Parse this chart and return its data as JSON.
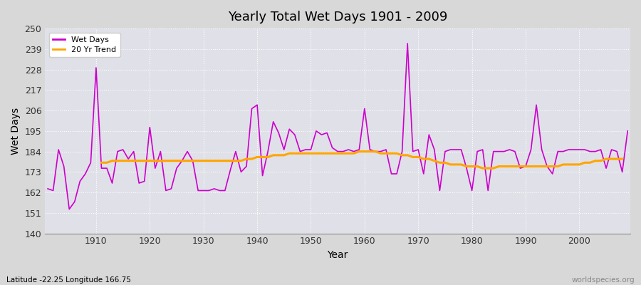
{
  "title": "Yearly Total Wet Days 1901 - 2009",
  "xlabel": "Year",
  "ylabel": "Wet Days",
  "subtitle": "Latitude -22.25 Longitude 166.75",
  "watermark": "worldspecies.org",
  "wet_days_color": "#cc00cc",
  "trend_color": "#ffa500",
  "bg_color": "#d8d8d8",
  "plot_bg_color": "#e0e0e8",
  "ylim": [
    140,
    250
  ],
  "yticks": [
    140,
    151,
    162,
    173,
    184,
    195,
    206,
    217,
    228,
    239,
    250
  ],
  "years": [
    1901,
    1902,
    1903,
    1904,
    1905,
    1906,
    1907,
    1908,
    1909,
    1910,
    1911,
    1912,
    1913,
    1914,
    1915,
    1916,
    1917,
    1918,
    1919,
    1920,
    1921,
    1922,
    1923,
    1924,
    1925,
    1926,
    1927,
    1928,
    1929,
    1930,
    1931,
    1932,
    1933,
    1934,
    1935,
    1936,
    1937,
    1938,
    1939,
    1940,
    1941,
    1942,
    1943,
    1944,
    1945,
    1946,
    1947,
    1948,
    1949,
    1950,
    1951,
    1952,
    1953,
    1954,
    1955,
    1956,
    1957,
    1958,
    1959,
    1960,
    1961,
    1962,
    1963,
    1964,
    1965,
    1966,
    1967,
    1968,
    1969,
    1970,
    1971,
    1972,
    1973,
    1974,
    1975,
    1976,
    1977,
    1978,
    1979,
    1980,
    1981,
    1982,
    1983,
    1984,
    1985,
    1986,
    1987,
    1988,
    1989,
    1990,
    1991,
    1992,
    1993,
    1994,
    1995,
    1996,
    1997,
    1998,
    1999,
    2000,
    2001,
    2002,
    2003,
    2004,
    2005,
    2006,
    2007,
    2008,
    2009
  ],
  "wet_days": [
    164,
    163,
    185,
    176,
    153,
    157,
    168,
    172,
    178,
    229,
    175,
    175,
    167,
    184,
    185,
    180,
    184,
    167,
    168,
    197,
    175,
    184,
    163,
    164,
    175,
    179,
    184,
    179,
    163,
    163,
    163,
    164,
    163,
    163,
    174,
    184,
    173,
    176,
    207,
    209,
    171,
    184,
    200,
    194,
    185,
    196,
    193,
    184,
    185,
    185,
    195,
    193,
    194,
    186,
    184,
    184,
    185,
    184,
    185,
    207,
    185,
    184,
    184,
    185,
    172,
    172,
    184,
    242,
    184,
    185,
    172,
    193,
    185,
    163,
    184,
    185,
    185,
    185,
    175,
    163,
    184,
    185,
    163,
    184,
    184,
    184,
    185,
    184,
    175,
    176,
    185,
    209,
    185,
    176,
    172,
    184,
    184,
    185,
    185,
    185,
    185,
    184,
    184,
    185,
    175,
    185,
    184,
    173,
    195
  ],
  "trend": [
    null,
    null,
    null,
    null,
    null,
    null,
    null,
    null,
    null,
    null,
    178,
    178,
    179,
    179,
    179,
    179,
    179,
    179,
    179,
    179,
    179,
    179,
    179,
    179,
    179,
    179,
    179,
    179,
    179,
    179,
    179,
    179,
    179,
    179,
    179,
    179,
    179,
    180,
    180,
    181,
    181,
    181,
    182,
    182,
    182,
    183,
    183,
    183,
    183,
    183,
    183,
    183,
    183,
    183,
    183,
    183,
    183,
    183,
    184,
    184,
    184,
    184,
    183,
    183,
    183,
    183,
    182,
    182,
    181,
    181,
    180,
    180,
    179,
    178,
    178,
    177,
    177,
    177,
    176,
    176,
    176,
    175,
    175,
    175,
    176,
    176,
    176,
    176,
    176,
    176,
    176,
    176,
    176,
    176,
    176,
    176,
    177,
    177,
    177,
    177,
    178,
    178,
    179,
    179,
    180,
    180,
    180,
    180,
    null
  ]
}
